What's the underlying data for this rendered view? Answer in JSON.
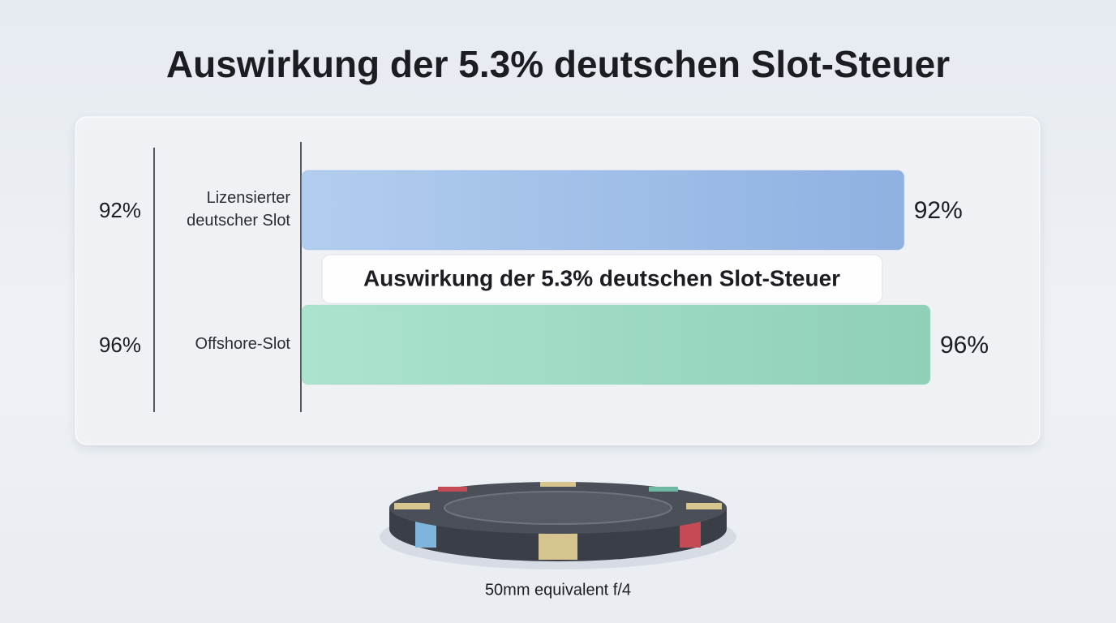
{
  "chart_data": {
    "type": "bar",
    "orientation": "horizontal",
    "title": "Auswirkung der 5.3% deutschen Slot-Steuer",
    "categories": [
      "Lizensierter deutscher Slot",
      "Offshore-Slot"
    ],
    "values": [
      92,
      96
    ],
    "value_labels": [
      "92%",
      "96%"
    ],
    "colors": [
      "#9dbde8",
      "#9bd9c0"
    ],
    "annotation": "Auswirkung der 5.3% deutschen Slot-Steuer",
    "caption": "50mm equivalent f/4"
  }
}
